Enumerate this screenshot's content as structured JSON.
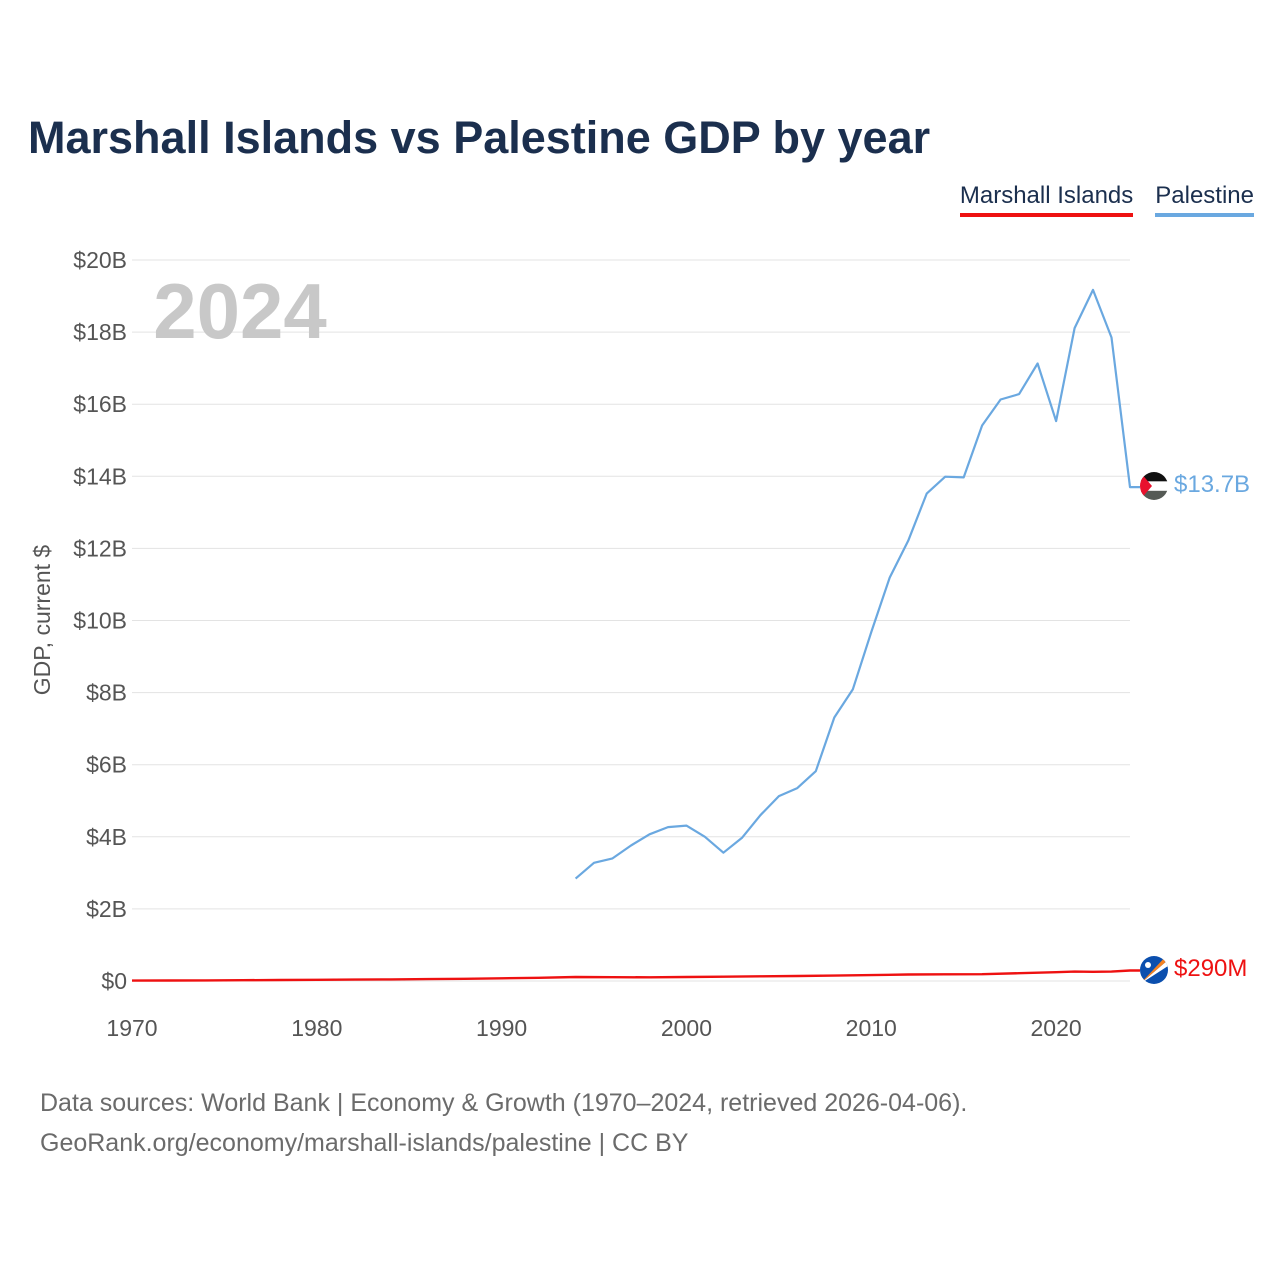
{
  "title": "Marshall Islands vs Palestine GDP by year",
  "legend": [
    {
      "name": "Marshall Islands",
      "color": "#ee1111"
    },
    {
      "name": "Palestine",
      "color": "#6aa8e0"
    }
  ],
  "year_label": "2024",
  "ylabel": "GDP, current $",
  "end_labels": {
    "marshall": "$290M",
    "palestine": "$13.7B"
  },
  "footer": {
    "line1": "Data sources: World Bank | Economy & Growth (1970–2024, retrieved 2026-04-06).",
    "line2": "GeoRank.org/economy/marshall-islands/palestine | CC BY"
  },
  "chart_data": {
    "type": "line",
    "title": "Marshall Islands vs Palestine GDP by year",
    "xlabel": "",
    "ylabel": "GDP, current $",
    "xlim": [
      1970,
      2024
    ],
    "ylim": [
      0,
      20
    ],
    "y_unit": "billions USD",
    "x_ticks": [
      1970,
      1980,
      1990,
      2000,
      2010,
      2020
    ],
    "y_ticks": [
      {
        "value": 0,
        "label": "$0"
      },
      {
        "value": 2,
        "label": "$2B"
      },
      {
        "value": 4,
        "label": "$4B"
      },
      {
        "value": 6,
        "label": "$6B"
      },
      {
        "value": 8,
        "label": "$8B"
      },
      {
        "value": 10,
        "label": "$10B"
      },
      {
        "value": 12,
        "label": "$12B"
      },
      {
        "value": 14,
        "label": "$14B"
      },
      {
        "value": 16,
        "label": "$16B"
      },
      {
        "value": 18,
        "label": "$18B"
      },
      {
        "value": 20,
        "label": "$20B"
      }
    ],
    "series": [
      {
        "name": "Marshall Islands",
        "color": "#ee1111",
        "x": [
          1970,
          1972,
          1974,
          1976,
          1978,
          1980,
          1982,
          1984,
          1986,
          1988,
          1990,
          1992,
          1994,
          1996,
          1998,
          2000,
          2002,
          2004,
          2006,
          2008,
          2010,
          2012,
          2014,
          2016,
          2018,
          2020,
          2021,
          2022,
          2023,
          2024
        ],
        "values": [
          0.012,
          0.015,
          0.018,
          0.022,
          0.028,
          0.032,
          0.038,
          0.045,
          0.052,
          0.062,
          0.075,
          0.09,
          0.11,
          0.105,
          0.103,
          0.11,
          0.12,
          0.13,
          0.14,
          0.15,
          0.165,
          0.18,
          0.185,
          0.19,
          0.215,
          0.245,
          0.26,
          0.255,
          0.26,
          0.29
        ]
      },
      {
        "name": "Palestine",
        "color": "#6aa8e0",
        "x": [
          1994,
          1995,
          1996,
          1997,
          1998,
          1999,
          2000,
          2001,
          2002,
          2003,
          2004,
          2005,
          2006,
          2007,
          2008,
          2009,
          2010,
          2011,
          2012,
          2013,
          2014,
          2015,
          2016,
          2017,
          2018,
          2019,
          2020,
          2021,
          2022,
          2023,
          2024
        ],
        "values": [
          2.84,
          3.28,
          3.4,
          3.76,
          4.07,
          4.27,
          4.31,
          4.0,
          3.56,
          3.97,
          4.6,
          5.13,
          5.35,
          5.82,
          7.31,
          8.09,
          9.68,
          11.19,
          12.21,
          13.52,
          13.99,
          13.97,
          15.41,
          16.13,
          16.28,
          17.13,
          15.53,
          18.11,
          19.17,
          17.85,
          13.7
        ]
      }
    ]
  }
}
